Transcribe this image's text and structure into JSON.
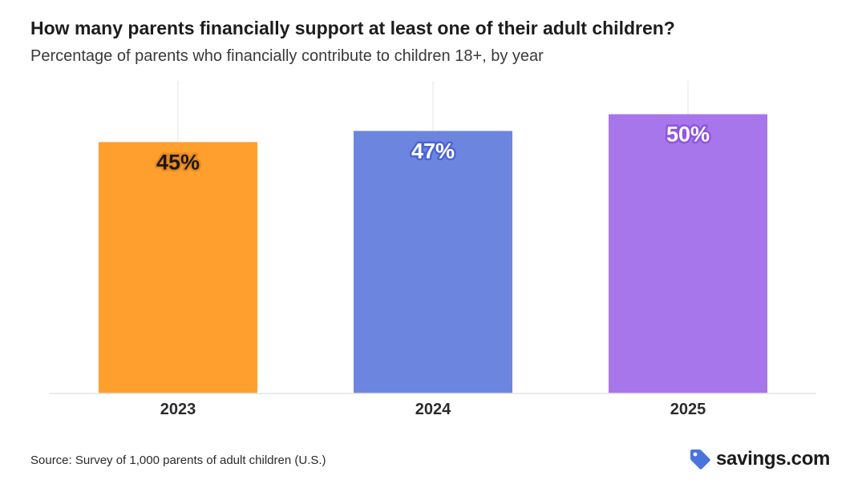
{
  "header": {
    "title": "How many parents financially support at least one of their adult children?",
    "subtitle": "Percentage of parents who financially contribute to children 18+, by year"
  },
  "chart_data": {
    "type": "bar",
    "categories": [
      "2023",
      "2024",
      "2025"
    ],
    "values": [
      45,
      47,
      50
    ],
    "data_labels": [
      "45%",
      "47%",
      "50%"
    ],
    "colors": [
      "#FF9F2E",
      "#6C86E0",
      "#A876EB"
    ],
    "label_colors": [
      "#1a1a1a",
      "#ffffff",
      "#ffffff"
    ],
    "label_halo_colors": [
      "#e8891d",
      "#4d63d6",
      "#8d54df"
    ],
    "ylim": [
      0,
      100
    ],
    "grid": "vertical gridlines at categories",
    "legend": "none"
  },
  "footer": {
    "source": "Source: Survey of 1,000 parents of adult children (U.S.)",
    "brand": "savings.com",
    "brand_icon": "tag-icon",
    "brand_icon_color": "#4A73DD"
  }
}
